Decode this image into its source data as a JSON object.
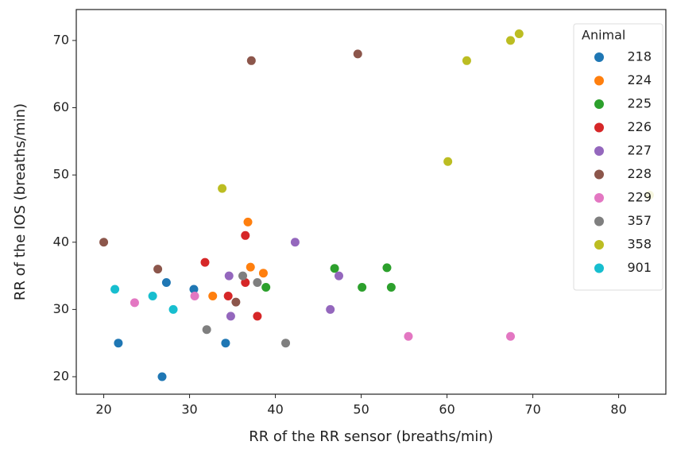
{
  "chart_data": {
    "type": "scatter",
    "xlabel": "RR of the RR sensor (breaths/min)",
    "ylabel": "RR of the IOS (breaths/min)",
    "legend_title": "Animal",
    "legend": "upper right",
    "xlim": [
      16.8,
      85.5
    ],
    "xticks": [
      20,
      30,
      40,
      50,
      60,
      70,
      80
    ],
    "ylim": [
      17.4,
      74.6
    ],
    "yticks": [
      20,
      30,
      40,
      50,
      60,
      70
    ],
    "series": [
      {
        "name": "218",
        "color": "#1f77b4",
        "x": [
          21.7,
          27.3,
          30.5,
          26.8,
          34.2
        ],
        "values": [
          25,
          34,
          33,
          20,
          25
        ]
      },
      {
        "name": "224",
        "color": "#ff7f0e",
        "x": [
          32.7,
          36.8,
          37.1,
          38.6
        ],
        "values": [
          32,
          43,
          36.3,
          35.4
        ]
      },
      {
        "name": "225",
        "color": "#2ca02c",
        "x": [
          38.9,
          46.9,
          50.1,
          53,
          53.5
        ],
        "values": [
          33.3,
          36.1,
          33.3,
          36.2,
          33.3
        ]
      },
      {
        "name": "226",
        "color": "#d62728",
        "x": [
          31.8,
          36.5,
          36.5,
          34.5,
          37.9
        ],
        "values": [
          37,
          41,
          34,
          32,
          29
        ]
      },
      {
        "name": "227",
        "color": "#9467bd",
        "x": [
          34.6,
          42.3,
          47.4,
          46.4,
          34.8
        ],
        "values": [
          35,
          40,
          35,
          30,
          29
        ]
      },
      {
        "name": "228",
        "color": "#8c564b",
        "x": [
          20,
          26.3,
          37.2,
          35.4,
          49.6
        ],
        "values": [
          40,
          36,
          67,
          31.1,
          68
        ]
      },
      {
        "name": "229",
        "color": "#e377c2",
        "x": [
          23.6,
          30.6,
          55.5,
          67.4
        ],
        "values": [
          31,
          32,
          26,
          26
        ]
      },
      {
        "name": "357",
        "color": "#7f7f7f",
        "x": [
          32,
          36.2,
          37.9,
          41.2
        ],
        "values": [
          27,
          35,
          34,
          25
        ]
      },
      {
        "name": "358",
        "color": "#bcbd22",
        "x": [
          33.8,
          60.1,
          62.3,
          67.4,
          68.4,
          83.6
        ],
        "values": [
          48,
          52,
          67,
          70,
          71,
          47
        ]
      },
      {
        "name": "901",
        "color": "#17becf",
        "x": [
          21.3,
          25.7,
          28.1
        ],
        "values": [
          33,
          32,
          30
        ]
      }
    ]
  }
}
